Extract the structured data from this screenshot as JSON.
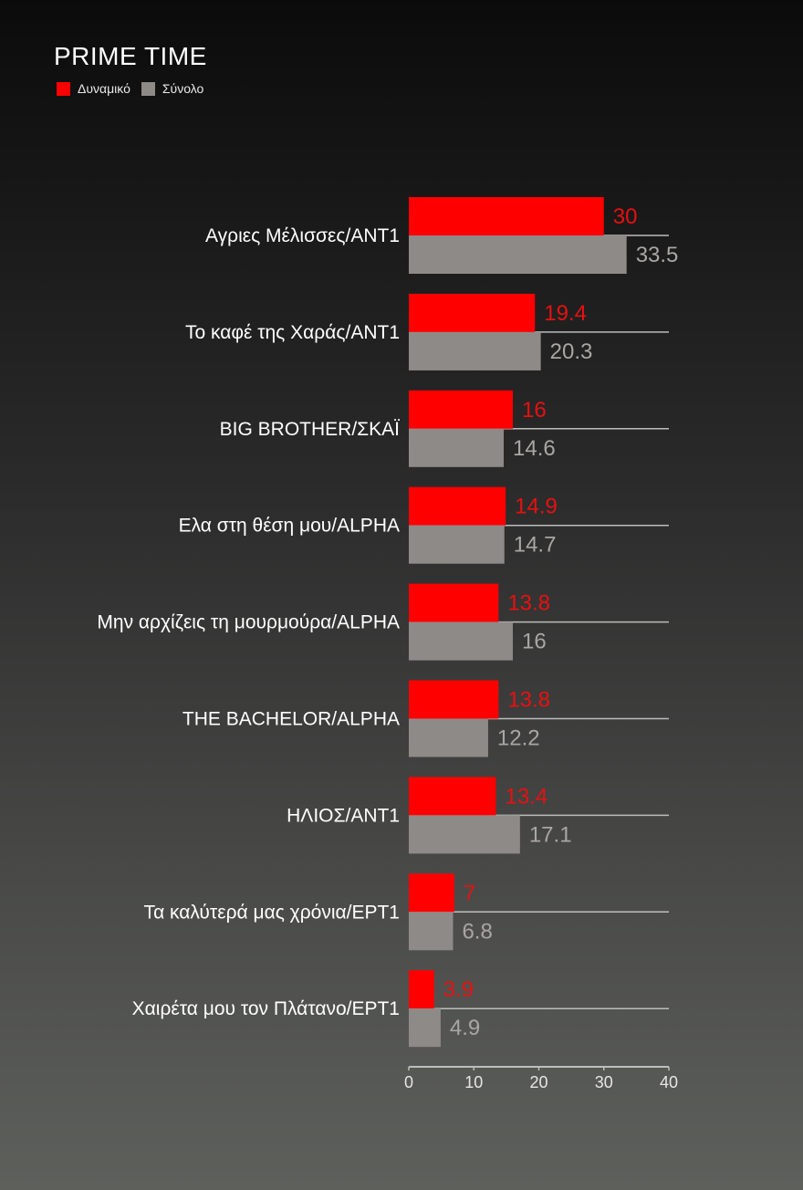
{
  "chart_data": {
    "type": "bar",
    "orientation": "horizontal",
    "title": "PRIME TIME",
    "categories": [
      "Αγριες Μέλισσες/ΑΝΤ1",
      "Το καφέ της Χαράς/ΑΝΤ1",
      "BIG BROTHER/ΣΚΑΪ",
      "Ελα στη θέση μου/ALPHA",
      "Μην αρχίζεις τη μουρμούρα/ALPHA",
      "THE BACHELOR/ALPHA",
      "ΗΛΙΟΣ/ΑΝΤ1",
      "Τα καλύτερά μας χρόνια/ΕΡΤ1",
      "Χαιρέτα μου τον Πλάτανο/ΕΡΤ1"
    ],
    "series": [
      {
        "name": "Δυναμικό",
        "color": "#ff0000",
        "values": [
          30,
          19.4,
          16,
          14.9,
          13.8,
          13.8,
          13.4,
          7,
          3.9
        ]
      },
      {
        "name": "Σύνολο",
        "color": "#8e8a88",
        "values": [
          33.5,
          20.3,
          14.6,
          14.7,
          16,
          12.2,
          17.1,
          6.8,
          4.9
        ]
      }
    ],
    "value_labels": [
      [
        "30",
        "19.4",
        "16",
        "14.9",
        "13.8",
        "13.8",
        "13.4",
        "7",
        "3.9"
      ],
      [
        "33.5",
        "20.3",
        "14.6",
        "14.7",
        "16",
        "12.2",
        "17.1",
        "6.8",
        "4.9"
      ]
    ],
    "xlim": [
      0,
      40
    ],
    "xticks": [
      "0",
      "10",
      "20",
      "30",
      "40"
    ],
    "xlabel": "",
    "ylabel": "",
    "legend_position": "top-left",
    "grid": true
  }
}
